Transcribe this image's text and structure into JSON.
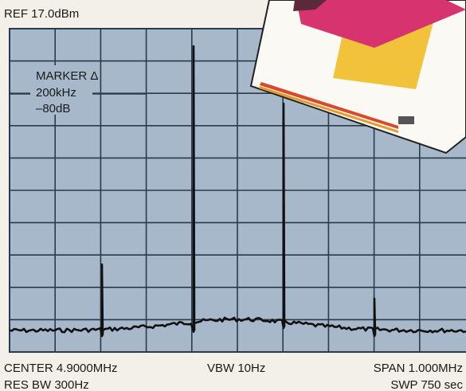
{
  "header": {
    "reference": "REF 17.0dBm"
  },
  "marker": {
    "title": "MARKER Δ",
    "frequency": "200kHz",
    "level": "–80dB"
  },
  "footer": {
    "center": "CENTER 4.9000MHz",
    "vbw": "VBW 10Hz",
    "span": "SPAN 1.000MHz",
    "res_bw": "RES BW 300Hz",
    "sweep": "SWP 750 sec"
  }
}
